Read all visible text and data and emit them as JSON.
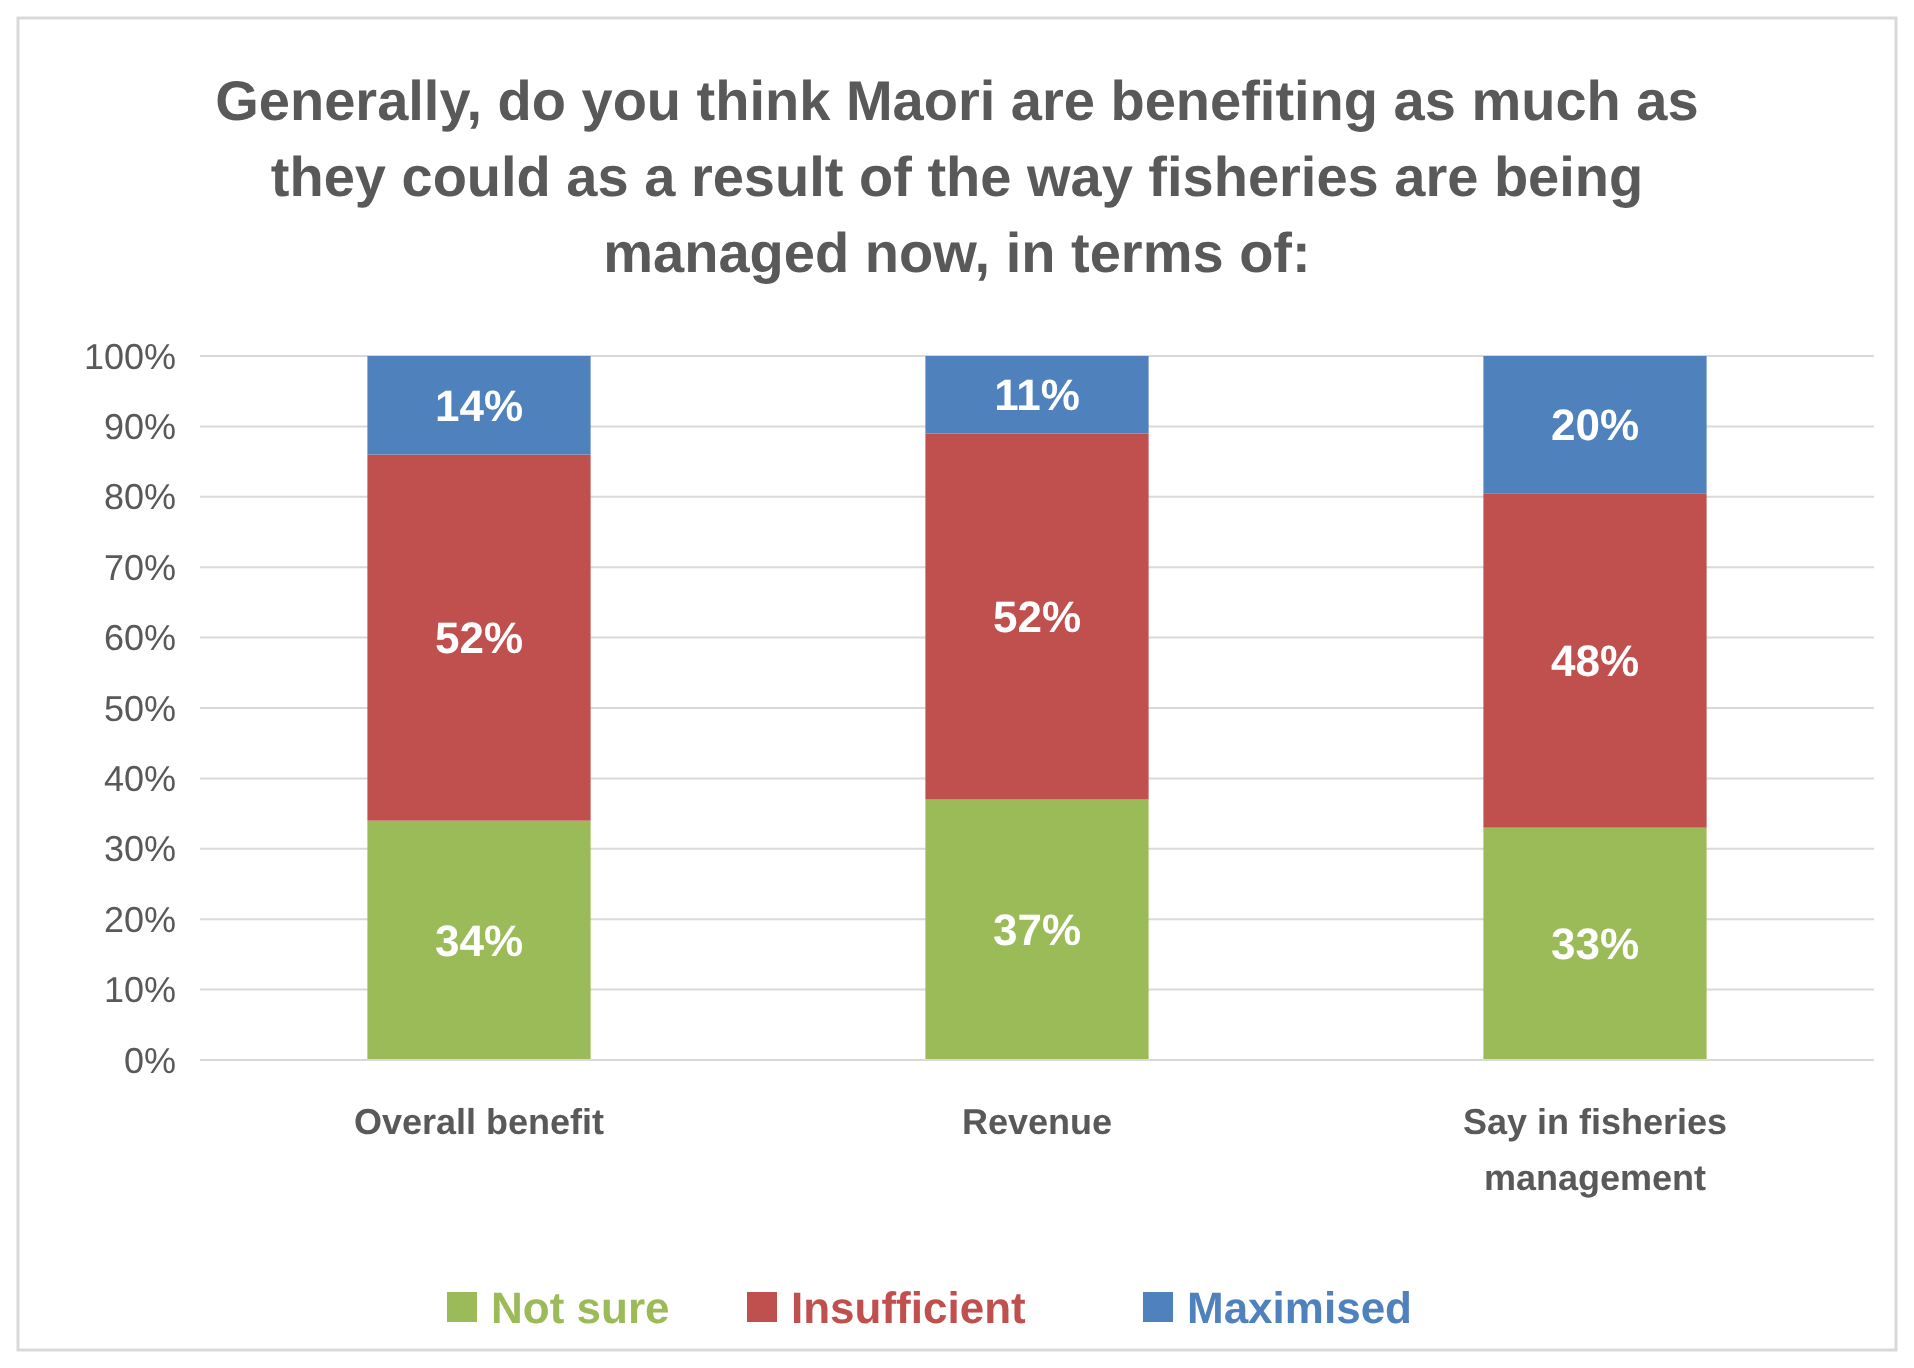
{
  "chart_data": {
    "type": "bar",
    "stacked": true,
    "title": "Generally, do you think Maori are benefiting as much as they could as a result of the way fisheries are being managed now, in terms of:",
    "categories": [
      "Overall benefit",
      "Revenue",
      "Say in fisheries management"
    ],
    "series": [
      {
        "name": "Not sure",
        "color": "#9bbb59",
        "values": [
          34,
          37,
          33
        ],
        "value_labels": [
          "34%",
          "37%",
          "33%"
        ]
      },
      {
        "name": "Insufficient",
        "color": "#c0504d",
        "values": [
          52,
          52,
          47.5
        ],
        "value_labels": [
          "52%",
          "52%",
          "48%"
        ]
      },
      {
        "name": "Maximised",
        "color": "#4f81bd",
        "values": [
          14,
          11,
          19.5
        ],
        "value_labels": [
          "14%",
          "11%",
          "20%"
        ]
      }
    ],
    "ylim": [
      0,
      100
    ],
    "yticks": [
      {
        "value": 0,
        "label": "0%"
      },
      {
        "value": 10,
        "label": "10%"
      },
      {
        "value": 20,
        "label": "20%"
      },
      {
        "value": 30,
        "label": "30%"
      },
      {
        "value": 40,
        "label": "40%"
      },
      {
        "value": 50,
        "label": "50%"
      },
      {
        "value": 60,
        "label": "60%"
      },
      {
        "value": 70,
        "label": "70%"
      },
      {
        "value": 80,
        "label": "80%"
      },
      {
        "value": 90,
        "label": "90%"
      },
      {
        "value": 100,
        "label": "100%"
      }
    ],
    "grid": "y",
    "legend": "bottom"
  }
}
